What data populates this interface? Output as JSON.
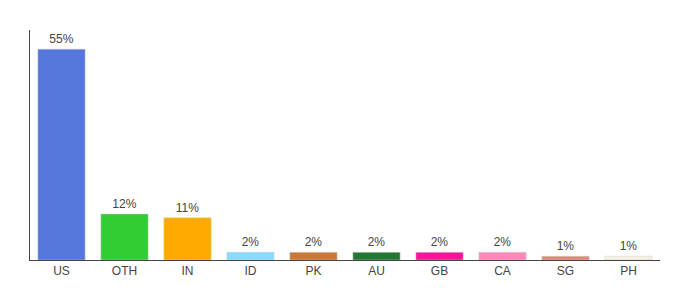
{
  "chart_data": {
    "type": "bar",
    "categories": [
      "US",
      "OTH",
      "IN",
      "ID",
      "PK",
      "AU",
      "GB",
      "CA",
      "SG",
      "PH"
    ],
    "values": [
      55,
      12,
      11,
      2,
      2,
      2,
      2,
      2,
      1,
      1
    ],
    "value_labels": [
      "55%",
      "12%",
      "11%",
      "2%",
      "2%",
      "2%",
      "2%",
      "2%",
      "1%",
      "1%"
    ],
    "colors": [
      "#5577dd",
      "#33cc33",
      "#ffaa00",
      "#88ddff",
      "#cc7733",
      "#227733",
      "#ff1199",
      "#ff88bb",
      "#dd8877",
      "#f5f2e0"
    ],
    "ylim": [
      0,
      60
    ],
    "data_labels": true,
    "tick_labels": "x",
    "grid": false
  }
}
